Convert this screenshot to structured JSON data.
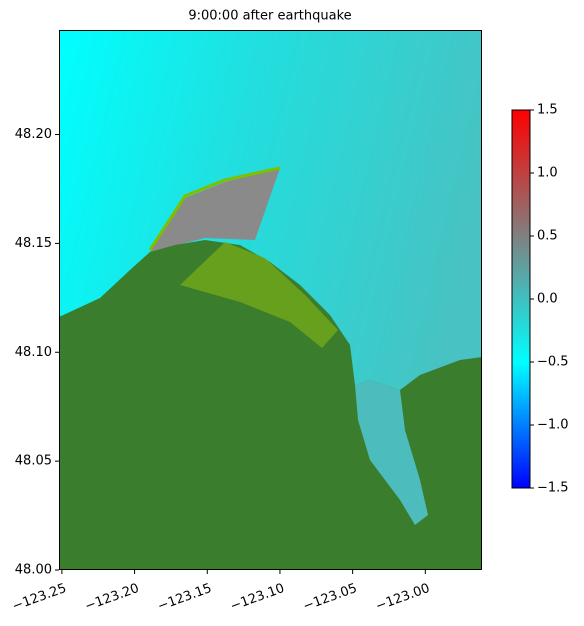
{
  "chart_data": {
    "type": "heatmap",
    "title": "9:00:00 after earthquake",
    "xlim": [
      -123.252,
      -122.961
    ],
    "ylim": [
      48.0,
      48.248
    ],
    "xticks": [
      {
        "value": -123.25,
        "label": "−123.25"
      },
      {
        "value": -123.2,
        "label": "−123.20"
      },
      {
        "value": -123.15,
        "label": "−123.15"
      },
      {
        "value": -123.1,
        "label": "−123.10"
      },
      {
        "value": -123.05,
        "label": "−123.05"
      },
      {
        "value": -123.0,
        "label": "−123.00"
      }
    ],
    "yticks": [
      {
        "value": 48.0,
        "label": "48.00"
      },
      48.05,
      {
        "value": 48.1,
        "label": "48.10"
      },
      48.15,
      {
        "value": 48.2,
        "label": "48.20"
      }
    ],
    "colorbar": {
      "clim": [
        -1.5,
        1.5
      ],
      "ticks": [
        {
          "value": -1.5,
          "label": "−1.5"
        },
        {
          "value": -1.0,
          "label": "−1.0"
        },
        {
          "value": -0.5,
          "label": "−0.5"
        },
        {
          "value": 0.0,
          "label": "0.0"
        },
        0.5,
        {
          "value": 1.0,
          "label": "1.0"
        },
        1.5
      ],
      "colors": [
        "#0000ff",
        "#00ffff",
        "#808080",
        "#ff0000"
      ]
    }
  }
}
